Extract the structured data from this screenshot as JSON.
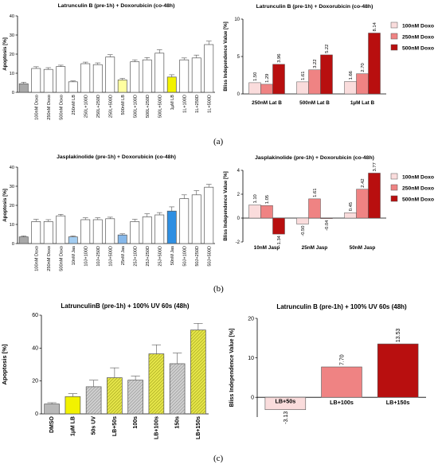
{
  "panel_labels": [
    "(a)",
    "(b)",
    "(c)"
  ],
  "chart_data": [
    {
      "id": "a_left",
      "type": "bar",
      "title": "Latrunculin B (pre-1h) + Doxorubicin (co-48h)",
      "ylabel": "Apoptosis [%]",
      "ylim": [
        0,
        40
      ],
      "yticks": [
        0,
        10,
        20,
        30,
        40
      ],
      "categories": [
        "",
        "100nM Doxo",
        "250nM Doxo",
        "500nM Doxo",
        "250nM LB",
        "250L+100D",
        "250L+250D",
        "250L+500D",
        "500nM LB",
        "500L+100D",
        "500L+250D",
        "500L+500D",
        "1µM LB",
        "1L+100D",
        "1L+250D",
        "1L+500D"
      ],
      "values": [
        4.5,
        12.5,
        12,
        13.5,
        5.5,
        15,
        14.5,
        18.5,
        6.5,
        16,
        17,
        20.5,
        8,
        17,
        18,
        25
      ],
      "errors": [
        0.8,
        0.9,
        0.9,
        0.7,
        0.5,
        0.8,
        0.9,
        1.2,
        0.8,
        1.0,
        1.2,
        1.8,
        1.2,
        1.0,
        1.5,
        1.8
      ],
      "colors": [
        "#a8a8a8",
        "#ffffff",
        "#ffffff",
        "#ffffff",
        "#ffffff",
        "#ffffff",
        "#ffffff",
        "#ffffff",
        "#ffffa0",
        "#ffffff",
        "#ffffff",
        "#ffffff",
        "#f2f200",
        "#ffffff",
        "#ffffff",
        "#ffffff"
      ]
    },
    {
      "id": "a_right",
      "type": "bar",
      "title": "Latrunculin B (pre-1h) + Doxorubicin (co-48h)",
      "ylabel": "Bliss Independence Value [%]",
      "ylim": [
        0,
        10
      ],
      "yticks": [
        0,
        5,
        10
      ],
      "categories": [
        "250nM Lat B",
        "500nM Lat B",
        "1µM Lat B"
      ],
      "series": [
        {
          "name": "100nM Doxo",
          "color": "#fadcdc",
          "values": [
            1.5,
            1.61,
            1.66
          ],
          "labels": [
            "1.50",
            "1.61",
            "1.66"
          ]
        },
        {
          "name": "250nM Doxo",
          "color": "#ef8383",
          "values": [
            1.29,
            3.22,
            2.7
          ],
          "labels": [
            "1.29",
            "3.22",
            "2.70"
          ]
        },
        {
          "name": "500nM Doxo",
          "color": "#b80f0f",
          "values": [
            3.96,
            5.22,
            8.14
          ],
          "labels": [
            "3.96",
            "5.22",
            "8.14"
          ]
        }
      ],
      "legend": "top-right"
    },
    {
      "id": "b_left",
      "type": "bar",
      "title": "Jasplakinolide (pre-1h) + Doxorubicin (co-48h)",
      "ylabel": "Apoptosis [%]",
      "ylim": [
        0,
        40
      ],
      "yticks": [
        0,
        10,
        20,
        30,
        40
      ],
      "categories": [
        "",
        "100nM Doxo",
        "250nM Doxo",
        "500nM Doxo",
        "10nM Jas",
        "10J+100D",
        "10J+250D",
        "10J+500D",
        "25nM Jas",
        "25J+100D",
        "25J+250D",
        "25J+500D",
        "50nM Jas",
        "50J+100D",
        "50J+250D",
        "50J+500D"
      ],
      "values": [
        3.5,
        11.5,
        11.5,
        14.5,
        3.5,
        12.5,
        12.5,
        13,
        4.5,
        11.5,
        14,
        15,
        17,
        23.5,
        25.5,
        29.5
      ],
      "errors": [
        0.5,
        1.2,
        1.0,
        0.8,
        0.5,
        1.0,
        1.0,
        0.8,
        0.6,
        1.2,
        1.6,
        1.2,
        2.2,
        2.0,
        2.2,
        1.5
      ],
      "colors": [
        "#a8a8a8",
        "#ffffff",
        "#ffffff",
        "#ffffff",
        "#a3cdf1",
        "#ffffff",
        "#ffffff",
        "#ffffff",
        "#86b8ea",
        "#ffffff",
        "#ffffff",
        "#ffffff",
        "#2f8fe2",
        "#ffffff",
        "#ffffff",
        "#ffffff"
      ]
    },
    {
      "id": "b_right",
      "type": "bar",
      "title": "Jasplakinolide (pre-1h) + Doxorubicin (co-48h)",
      "ylabel": "Bliss Independence Value [%]",
      "ylim": [
        -2,
        4
      ],
      "yticks": [
        -2,
        0,
        2,
        4
      ],
      "categories": [
        "10nM Jasp",
        "25nM Jasp",
        "50nM Jasp"
      ],
      "series": [
        {
          "name": "100nM Doxo",
          "color": "#fadcdc",
          "values": [
            1.1,
            -0.5,
            0.45
          ],
          "labels": [
            "1.10",
            "-0.50",
            "0.45"
          ]
        },
        {
          "name": "250nM Doxo",
          "color": "#ef8383",
          "values": [
            1.05,
            1.61,
            2.42
          ],
          "labels": [
            "1.05",
            "1.61",
            "2.42"
          ]
        },
        {
          "name": "500nM Doxo",
          "color": "#b80f0f",
          "values": [
            -1.34,
            -0.04,
            3.77
          ],
          "labels": [
            "-1.34",
            "-0.04",
            "3.77"
          ]
        }
      ],
      "legend": "top-right"
    },
    {
      "id": "c_left",
      "type": "bar",
      "title": "LatrunculinB (pre-1h) + 100% UV 60s (48h)",
      "ylabel": "Apoptosis [%]",
      "ylim": [
        0,
        60
      ],
      "yticks": [
        0,
        20,
        40,
        60
      ],
      "categories": [
        "DMSO",
        "1µM LB",
        "50s UV",
        "LB+50s",
        "100s",
        "LB+100s",
        "150s",
        "LB+150s"
      ],
      "values": [
        6,
        10.5,
        16.5,
        22,
        20.5,
        36.5,
        30.5,
        51
      ],
      "errors": [
        0.8,
        1.8,
        4.0,
        6.0,
        2.5,
        5.5,
        6.5,
        4.0
      ],
      "colors": [
        "#b8b8b8",
        "#f2f200",
        "#d8d8d8",
        "#e6e65c",
        "#d8d8d8",
        "#e6e65c",
        "#d8d8d8",
        "#e6e65c"
      ]
    },
    {
      "id": "c_right",
      "type": "bar",
      "title": "Latrunculin B (pre-1h) + 100% UV 60s (48h)",
      "ylabel": "Bliss Independence Value [%]",
      "ylim": [
        -5,
        20
      ],
      "yticks": [
        0,
        10,
        20
      ],
      "categories": [
        "LB+50s",
        "LB+100s",
        "LB+150s"
      ],
      "values": [
        -3.13,
        7.7,
        13.53
      ],
      "labels": [
        "-3.13",
        "7.70",
        "13.53"
      ],
      "colors": [
        "#fadcdc",
        "#ef8383",
        "#b80f0f"
      ]
    }
  ]
}
